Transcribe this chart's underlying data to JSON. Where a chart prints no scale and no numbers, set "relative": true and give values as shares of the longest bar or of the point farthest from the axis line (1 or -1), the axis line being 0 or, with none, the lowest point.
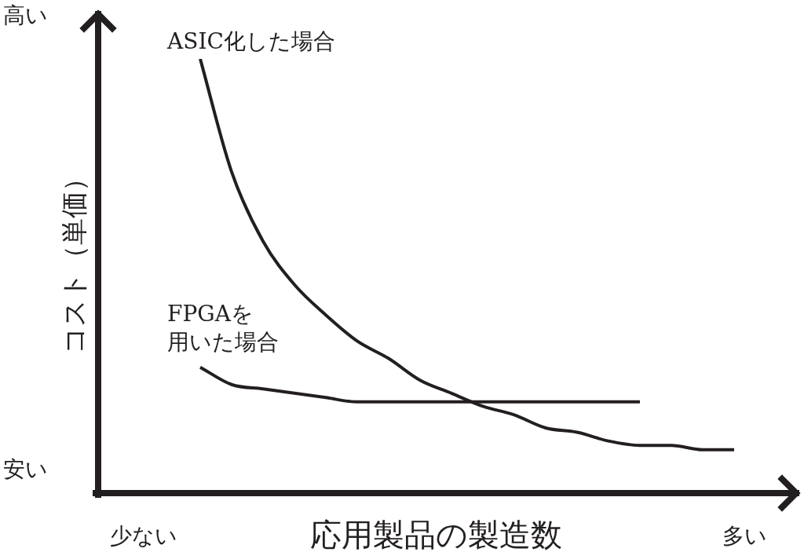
{
  "chart_data": {
    "type": "line",
    "relative": true,
    "xlabel": "応用製品の製造数",
    "ylabel": "コスト（単価）",
    "annotations": [
      "高い",
      "安い",
      "少ない",
      "多い"
    ],
    "marker": "none",
    "legend": false,
    "grid": false,
    "categories": [
      null,
      null,
      null,
      null,
      null,
      null,
      null,
      null,
      null,
      null,
      null,
      null,
      null,
      null,
      null,
      null,
      null,
      null
    ],
    "series": [
      {
        "name": "ASIC化した場合",
        "color": "#231f20",
        "values": [
          1,
          0.74,
          0.58,
          0.48,
          0.41,
          0.35,
          0.31,
          0.26,
          0.23,
          0.2,
          0.18,
          0.15,
          0.14,
          0.12,
          0.11,
          0.11,
          0.1,
          0.1
        ]
      },
      {
        "name": "FPGAを用いた場合",
        "color": "#231f20",
        "values": [
          0.29,
          0.25,
          0.24,
          0.23,
          0.22,
          0.21,
          0.21,
          0.21,
          0.21,
          0.21,
          0.21,
          0.21,
          0.21,
          0.21,
          0.21,
          null,
          null,
          null
        ]
      }
    ]
  }
}
